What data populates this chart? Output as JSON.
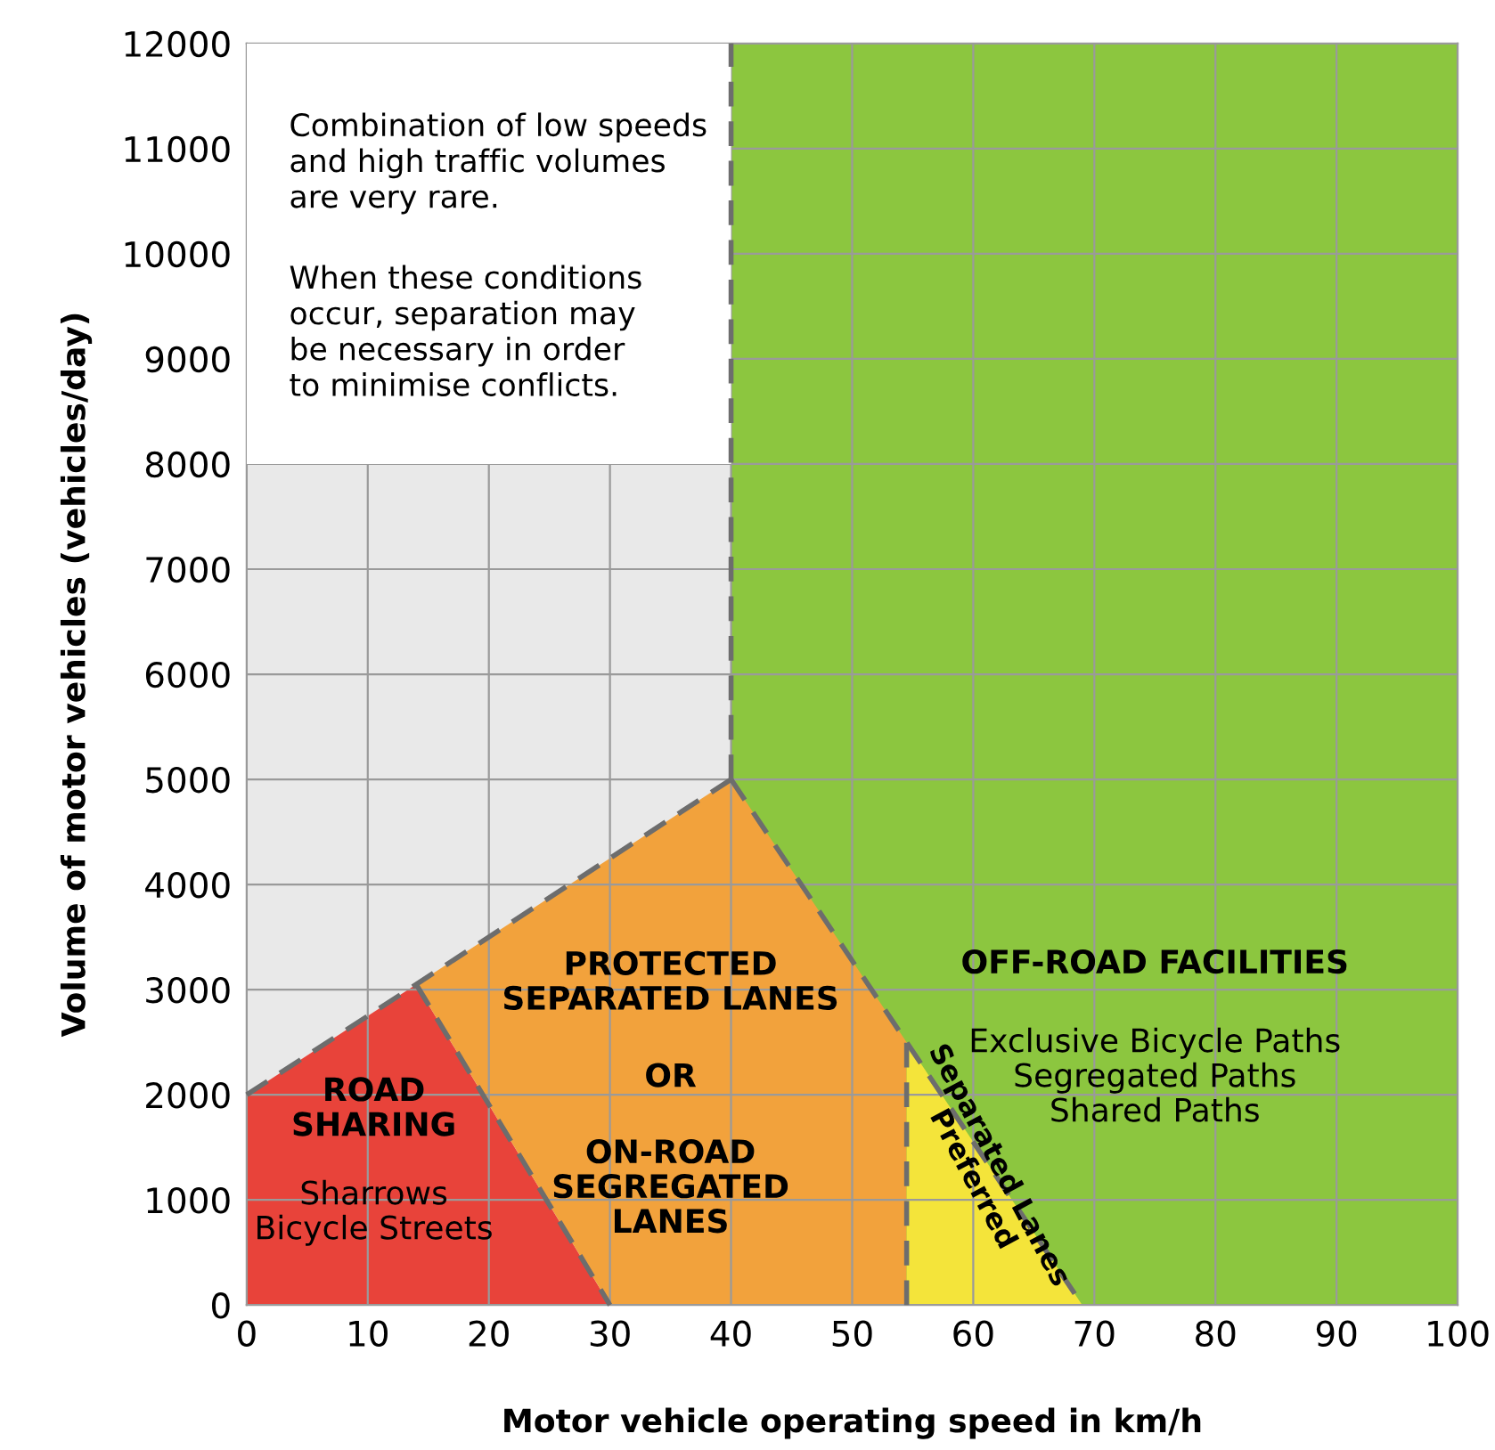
{
  "chart_data": {
    "type": "line",
    "xlabel": "Motor vehicle operating speed in km/h",
    "ylabel": "Volume of motor vehicles (vehicles/day)",
    "xlim": [
      0,
      100
    ],
    "ylim": [
      0,
      12000
    ],
    "xticks": [
      0,
      10,
      20,
      30,
      40,
      50,
      60,
      70,
      80,
      90,
      100
    ],
    "yticks": [
      0,
      1000,
      2000,
      3000,
      4000,
      5000,
      6000,
      7000,
      8000,
      9000,
      10000,
      11000,
      12000
    ],
    "grid": true,
    "legend": false,
    "line_style": "dashed",
    "bands": [
      {
        "axis": "x",
        "from": 40,
        "to": 100,
        "color": "#8cc63f"
      }
    ],
    "series": [
      {
        "color": "#6d6d6d",
        "x": [
          0,
          40
        ],
        "values": [
          2000,
          5000
        ]
      },
      {
        "color": "#6d6d6d",
        "x": [
          40,
          40
        ],
        "values": [
          5000,
          12000
        ]
      },
      {
        "color": "#6d6d6d",
        "x": [
          14,
          30
        ],
        "values": [
          3050,
          0
        ]
      },
      {
        "color": "#6d6d6d",
        "x": [
          40,
          69
        ],
        "values": [
          5000,
          0
        ]
      },
      {
        "color": "#6d6d6d",
        "x": [
          54.5,
          54.5
        ],
        "values": [
          0,
          2500
        ]
      }
    ],
    "annotations": [
      "Combination of low speeds\nand high traffic volumes\nare very rare.",
      "When these conditions\noccur, separation may\nbe necessary in order\nto minimise conflicts.",
      "ROAD\nSHARING",
      "Sharrows\nBicycle Streets",
      "PROTECTED\nSEPARATED LANES",
      "OR",
      "ON-ROAD\nSEGREGATED\nLANES",
      "OFF-ROAD FACILITIES",
      "Exclusive Bicycle Paths\nSegregated Paths\nShared Paths",
      "Separated Lanes\nPreferred"
    ]
  }
}
